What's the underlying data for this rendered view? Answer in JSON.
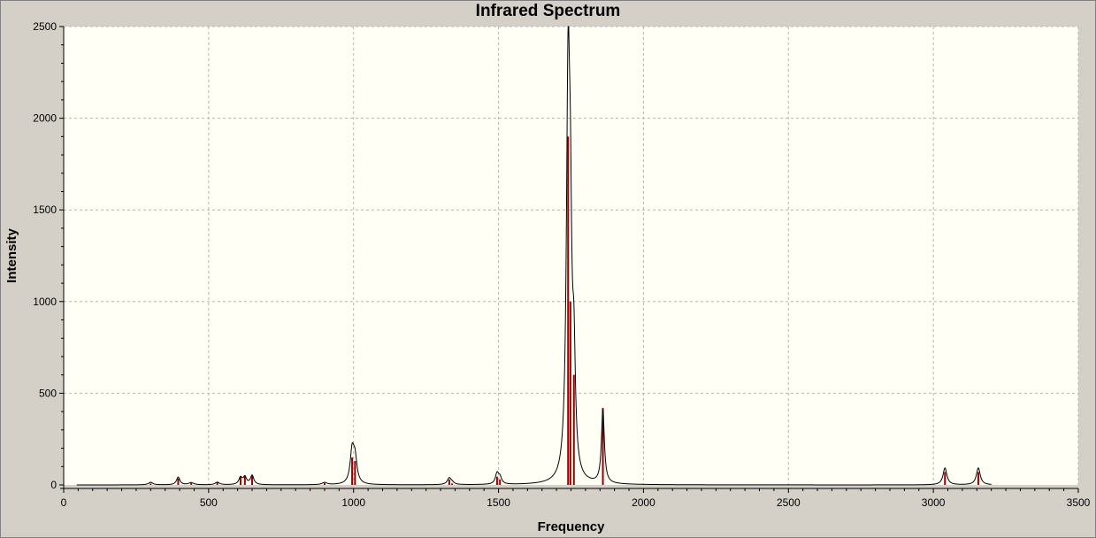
{
  "chart_data": {
    "type": "line",
    "title": "Infrared Spectrum",
    "xlabel": "Frequency",
    "ylabel": "Intensity",
    "xlim": [
      0,
      3500
    ],
    "ylim": [
      0,
      2500
    ],
    "x_ticks": [
      0,
      500,
      1000,
      1500,
      2000,
      2500,
      3000,
      3500
    ],
    "y_ticks": [
      0,
      500,
      1000,
      1500,
      2000,
      2500
    ],
    "grid": true,
    "colors": {
      "background": "#d4d0c8",
      "plot_area": "#fffff5",
      "spectrum": "#000000",
      "sticks": "#990000",
      "grid": "#b4b4b4"
    },
    "series": [
      {
        "kind": "sticks",
        "x": [
          300,
          395,
          440,
          530,
          610,
          625,
          650,
          900,
          995,
          1005,
          1330,
          1340,
          1495,
          1505,
          1740,
          1748,
          1760,
          1860,
          3040,
          3155
        ],
        "values": [
          8,
          35,
          10,
          12,
          45,
          50,
          55,
          10,
          150,
          130,
          30,
          8,
          45,
          30,
          1900,
          1000,
          600,
          420,
          70,
          70
        ]
      },
      {
        "kind": "spectrum",
        "x_range": [
          45,
          3200
        ],
        "peaks": [
          {
            "x": 300,
            "height": 14,
            "width": 9
          },
          {
            "x": 395,
            "height": 42,
            "width": 7
          },
          {
            "x": 440,
            "height": 12,
            "width": 10
          },
          {
            "x": 530,
            "height": 14,
            "width": 9
          },
          {
            "x": 610,
            "height": 38,
            "width": 7
          },
          {
            "x": 625,
            "height": 40,
            "width": 7
          },
          {
            "x": 650,
            "height": 50,
            "width": 7
          },
          {
            "x": 900,
            "height": 12,
            "width": 10
          },
          {
            "x": 995,
            "height": 175,
            "width": 8
          },
          {
            "x": 1005,
            "height": 130,
            "width": 8
          },
          {
            "x": 1330,
            "height": 35,
            "width": 8
          },
          {
            "x": 1340,
            "height": 10,
            "width": 8
          },
          {
            "x": 1495,
            "height": 58,
            "width": 7
          },
          {
            "x": 1505,
            "height": 35,
            "width": 7
          },
          {
            "x": 1740,
            "height": 2100,
            "width": 7
          },
          {
            "x": 1748,
            "height": 1000,
            "width": 6
          },
          {
            "x": 1760,
            "height": 560,
            "width": 6
          },
          {
            "x": 1860,
            "height": 400,
            "width": 6
          },
          {
            "x": 3040,
            "height": 92,
            "width": 8
          },
          {
            "x": 3155,
            "height": 92,
            "width": 8
          }
        ]
      }
    ]
  }
}
